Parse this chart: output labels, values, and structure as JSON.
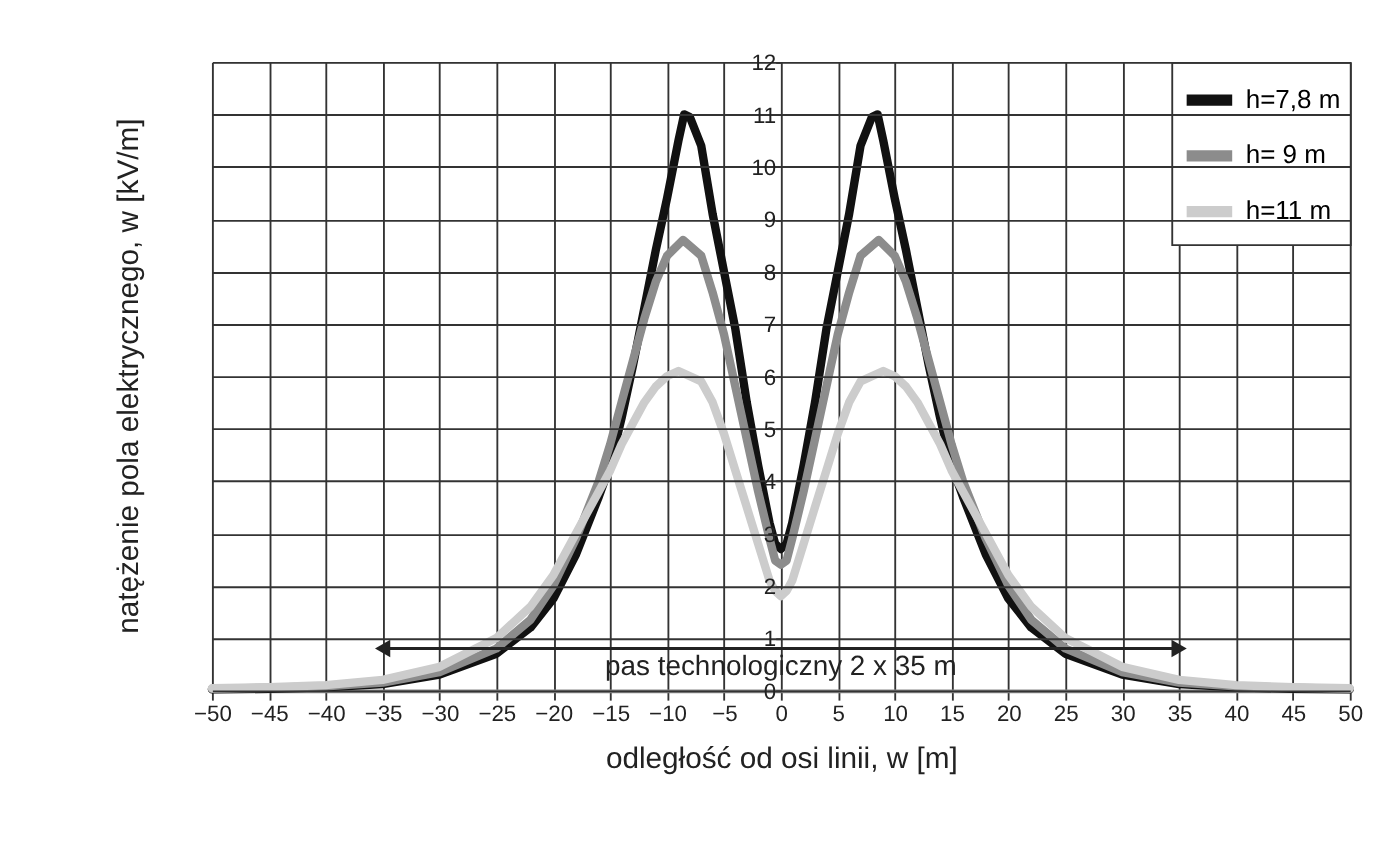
{
  "chart_data": {
    "type": "line",
    "xlabel": "odległość od osi linii, w [m]",
    "ylabel": "natężenie pola elektrycznego, w [kV/m]",
    "xlim": [
      -50,
      50
    ],
    "xticks": [
      -50,
      -45,
      -40,
      -35,
      -30,
      -25,
      -20,
      -15,
      -10,
      -5,
      0,
      5,
      10,
      15,
      20,
      25,
      30,
      35,
      40,
      45,
      50
    ],
    "ylim": [
      0,
      12
    ],
    "yticks": [
      0,
      1,
      2,
      3,
      4,
      5,
      6,
      7,
      8,
      9,
      10,
      11,
      12
    ],
    "grid": true,
    "legend": "top right",
    "marker": "none",
    "line_style": "solid",
    "annotations": [
      "pas  technologiczny 2 x 35 m"
    ],
    "series": [
      {
        "name": "h=7,8 m",
        "color": "#111111",
        "x": [
          -50,
          -45,
          -40,
          -35,
          -30,
          -25,
          -22,
          -20,
          -18,
          -16,
          -15,
          -14,
          -13,
          -12,
          -11,
          -10,
          -9,
          -8.5,
          -8,
          -7,
          -6,
          -5,
          -4,
          -3,
          -2,
          -1,
          -0.5,
          0,
          0.5,
          1,
          2,
          3,
          4,
          5,
          6,
          7,
          8,
          8.5,
          9,
          10,
          11,
          12,
          13,
          14,
          15,
          16,
          18,
          20,
          22,
          25,
          30,
          35,
          40,
          45,
          50
        ],
        "values": [
          0.02,
          0.03,
          0.06,
          0.12,
          0.3,
          0.7,
          1.2,
          1.75,
          2.6,
          3.7,
          4.3,
          5.2,
          6.2,
          7.3,
          8.4,
          9.4,
          10.5,
          11.0,
          10.95,
          10.4,
          9.1,
          8.0,
          6.9,
          5.5,
          4.3,
          3.2,
          2.8,
          2.7,
          2.8,
          3.2,
          4.3,
          5.5,
          6.9,
          8.0,
          9.1,
          10.4,
          10.95,
          11.0,
          10.5,
          9.4,
          8.4,
          7.3,
          6.2,
          5.2,
          4.3,
          3.7,
          2.6,
          1.75,
          1.2,
          0.7,
          0.3,
          0.12,
          0.06,
          0.03,
          0.02
        ]
      },
      {
        "name": "h= 9 m",
        "color": "#8c8c8c",
        "x": [
          -50,
          -45,
          -40,
          -35,
          -30,
          -25,
          -22,
          -20,
          -18,
          -16,
          -15,
          -14,
          -13,
          -12,
          -11,
          -10,
          -8.6,
          -7,
          -6,
          -5,
          -4,
          -3,
          -2,
          -1,
          -0.5,
          0,
          0.5,
          1,
          2,
          3,
          4,
          5,
          6,
          7,
          8.6,
          10,
          11,
          12,
          13,
          14,
          15,
          16,
          18,
          20,
          22,
          25,
          30,
          35,
          40,
          45,
          50
        ],
        "values": [
          0.03,
          0.05,
          0.08,
          0.15,
          0.35,
          0.8,
          1.35,
          2.0,
          2.9,
          4.0,
          4.7,
          5.5,
          6.3,
          7.1,
          7.8,
          8.3,
          8.6,
          8.3,
          7.6,
          6.8,
          5.8,
          4.8,
          3.8,
          2.9,
          2.48,
          2.4,
          2.48,
          2.9,
          3.8,
          4.8,
          5.8,
          6.8,
          7.6,
          8.3,
          8.6,
          8.3,
          7.8,
          7.1,
          6.3,
          5.5,
          4.7,
          4.0,
          2.9,
          2.0,
          1.35,
          0.8,
          0.35,
          0.15,
          0.08,
          0.05,
          0.03
        ]
      },
      {
        "color": "#222222",
        "marker": "triangle",
        "x": [
          -35,
          35
        ],
        "values": [
          0.8,
          0.8
        ]
      },
      {
        "name": "h=11 m",
        "color": "#cccccc",
        "x": [
          -50,
          -45,
          -40,
          -35,
          -30,
          -25,
          -22,
          -20,
          -18,
          -16,
          -15,
          -14,
          -13,
          -12,
          -11,
          -10,
          -9,
          -7,
          -6,
          -5,
          -4,
          -3,
          -2,
          -1,
          -0.5,
          0,
          0.5,
          1,
          2,
          3,
          4,
          5,
          6,
          7,
          9,
          10,
          11,
          12,
          13,
          14,
          15,
          16,
          18,
          20,
          22,
          25,
          30,
          35,
          40,
          45,
          50
        ],
        "values": [
          0.04,
          0.06,
          0.1,
          0.2,
          0.45,
          1.0,
          1.6,
          2.2,
          3.0,
          3.8,
          4.2,
          4.7,
          5.1,
          5.5,
          5.8,
          6.0,
          6.1,
          5.9,
          5.5,
          4.9,
          4.2,
          3.5,
          2.8,
          2.1,
          1.9,
          1.8,
          1.9,
          2.1,
          2.8,
          3.5,
          4.2,
          4.9,
          5.5,
          5.9,
          6.1,
          6.0,
          5.8,
          5.5,
          5.1,
          4.7,
          4.2,
          3.8,
          3.0,
          2.2,
          1.6,
          1.0,
          0.45,
          0.2,
          0.1,
          0.06,
          0.04
        ]
      }
    ]
  }
}
